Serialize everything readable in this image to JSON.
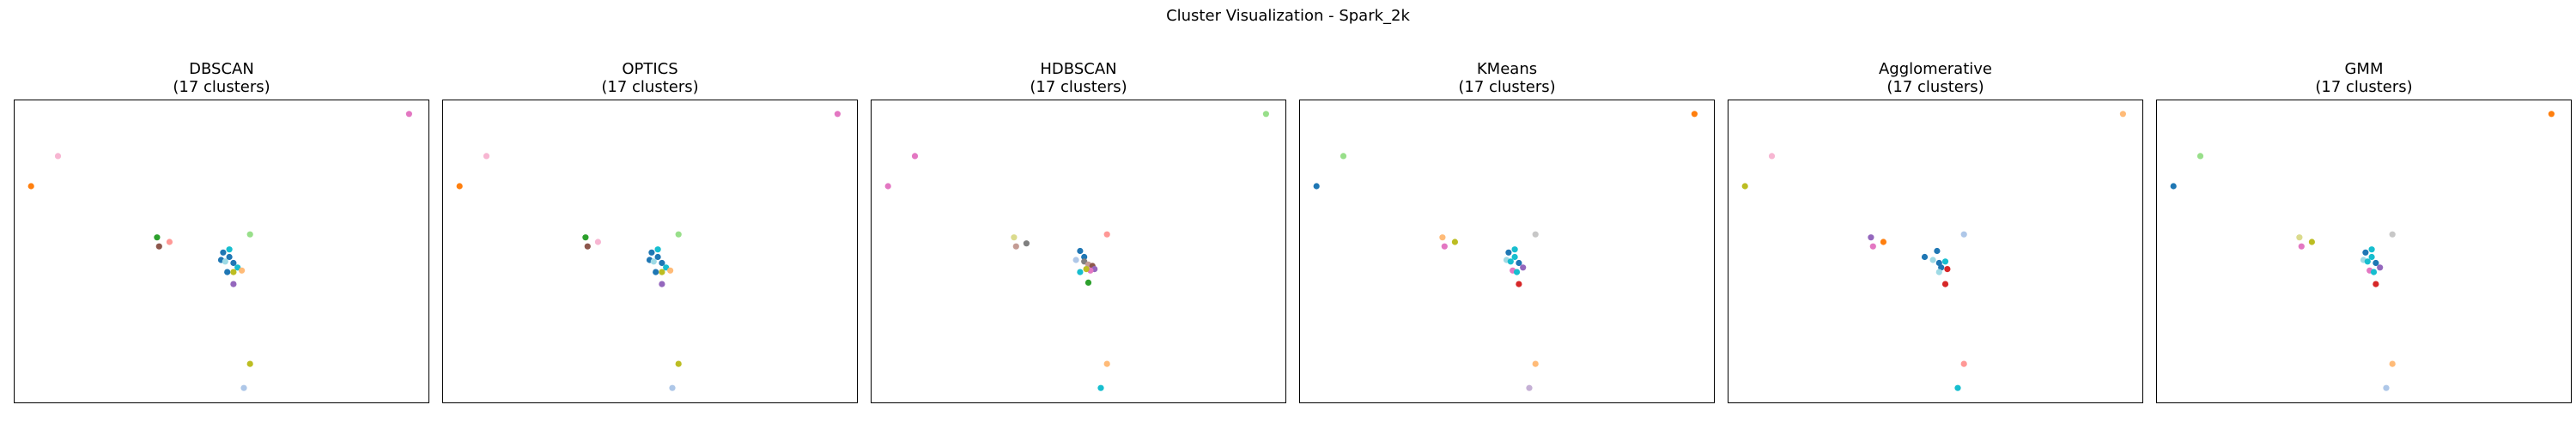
{
  "figure": {
    "suptitle": "Cluster Visualization - Spark_2k"
  },
  "chart_data": [
    {
      "type": "scatter",
      "title": "DBSCAN",
      "subtitle": "(17 clusters)",
      "xlim": [
        0,
        100
      ],
      "ylim": [
        0,
        100
      ],
      "grid": false,
      "axes_ticks": false,
      "points": [
        {
          "x": 95.5,
          "y": 95.5,
          "color": "#e377c2"
        },
        {
          "x": 10.5,
          "y": 81.5,
          "color": "#f7b6d2"
        },
        {
          "x": 4.0,
          "y": 71.5,
          "color": "#ff7f0e"
        },
        {
          "x": 34.5,
          "y": 54.5,
          "color": "#2ca02c"
        },
        {
          "x": 37.5,
          "y": 53.0,
          "color": "#ff9896"
        },
        {
          "x": 35.0,
          "y": 51.5,
          "color": "#8c564b"
        },
        {
          "x": 57.0,
          "y": 55.5,
          "color": "#98df8a"
        },
        {
          "x": 50.5,
          "y": 49.5,
          "color": "#1f77b4"
        },
        {
          "x": 52.0,
          "y": 50.5,
          "color": "#17becf"
        },
        {
          "x": 50.0,
          "y": 47.0,
          "color": "#1f77b4"
        },
        {
          "x": 52.0,
          "y": 48.0,
          "color": "#1f77b4"
        },
        {
          "x": 51.0,
          "y": 46.5,
          "color": "#9edae5"
        },
        {
          "x": 53.0,
          "y": 46.0,
          "color": "#1f77b4"
        },
        {
          "x": 54.0,
          "y": 44.5,
          "color": "#17becf"
        },
        {
          "x": 55.0,
          "y": 43.5,
          "color": "#ffbb78"
        },
        {
          "x": 51.5,
          "y": 43.0,
          "color": "#1f77b4"
        },
        {
          "x": 53.0,
          "y": 43.0,
          "color": "#bcbd22"
        },
        {
          "x": 53.0,
          "y": 39.0,
          "color": "#9467bd"
        },
        {
          "x": 57.0,
          "y": 12.5,
          "color": "#bcbd22"
        },
        {
          "x": 55.5,
          "y": 4.5,
          "color": "#aec7e8"
        }
      ]
    },
    {
      "type": "scatter",
      "title": "OPTICS",
      "subtitle": "(17 clusters)",
      "xlim": [
        0,
        100
      ],
      "ylim": [
        0,
        100
      ],
      "grid": false,
      "axes_ticks": false,
      "points": [
        {
          "x": 95.5,
          "y": 95.5,
          "color": "#e377c2"
        },
        {
          "x": 10.5,
          "y": 81.5,
          "color": "#f7b6d2"
        },
        {
          "x": 4.0,
          "y": 71.5,
          "color": "#ff7f0e"
        },
        {
          "x": 34.5,
          "y": 54.5,
          "color": "#2ca02c"
        },
        {
          "x": 37.5,
          "y": 53.0,
          "color": "#f7b6d2"
        },
        {
          "x": 35.0,
          "y": 51.5,
          "color": "#8c564b"
        },
        {
          "x": 57.0,
          "y": 55.5,
          "color": "#98df8a"
        },
        {
          "x": 50.5,
          "y": 49.5,
          "color": "#1f77b4"
        },
        {
          "x": 52.0,
          "y": 50.5,
          "color": "#17becf"
        },
        {
          "x": 50.0,
          "y": 47.0,
          "color": "#1f77b4"
        },
        {
          "x": 52.0,
          "y": 48.0,
          "color": "#1f77b4"
        },
        {
          "x": 51.0,
          "y": 46.5,
          "color": "#9edae5"
        },
        {
          "x": 53.0,
          "y": 46.0,
          "color": "#1f77b4"
        },
        {
          "x": 54.0,
          "y": 44.5,
          "color": "#17becf"
        },
        {
          "x": 55.0,
          "y": 43.5,
          "color": "#ffbb78"
        },
        {
          "x": 51.5,
          "y": 43.0,
          "color": "#1f77b4"
        },
        {
          "x": 53.0,
          "y": 43.0,
          "color": "#bcbd22"
        },
        {
          "x": 53.0,
          "y": 39.0,
          "color": "#9467bd"
        },
        {
          "x": 57.0,
          "y": 12.5,
          "color": "#bcbd22"
        },
        {
          "x": 55.5,
          "y": 4.5,
          "color": "#aec7e8"
        }
      ]
    },
    {
      "type": "scatter",
      "title": "HDBSCAN",
      "subtitle": "(17 clusters)",
      "xlim": [
        0,
        100
      ],
      "ylim": [
        0,
        100
      ],
      "grid": false,
      "axes_ticks": false,
      "points": [
        {
          "x": 95.5,
          "y": 95.5,
          "color": "#98df8a"
        },
        {
          "x": 10.5,
          "y": 81.5,
          "color": "#e377c2"
        },
        {
          "x": 4.0,
          "y": 71.5,
          "color": "#e377c2"
        },
        {
          "x": 34.5,
          "y": 54.5,
          "color": "#dbdb8d"
        },
        {
          "x": 37.5,
          "y": 52.5,
          "color": "#7f7f7f"
        },
        {
          "x": 35.0,
          "y": 51.5,
          "color": "#c49c94"
        },
        {
          "x": 57.0,
          "y": 55.5,
          "color": "#ff9896"
        },
        {
          "x": 50.5,
          "y": 50.0,
          "color": "#1f77b4"
        },
        {
          "x": 49.5,
          "y": 47.0,
          "color": "#aec7e8"
        },
        {
          "x": 51.5,
          "y": 48.0,
          "color": "#1f77b4"
        },
        {
          "x": 51.5,
          "y": 46.5,
          "color": "#7f7f7f"
        },
        {
          "x": 52.5,
          "y": 45.5,
          "color": "#c49c94"
        },
        {
          "x": 53.5,
          "y": 45.0,
          "color": "#8c564b"
        },
        {
          "x": 54.0,
          "y": 44.0,
          "color": "#9467bd"
        },
        {
          "x": 53.0,
          "y": 43.5,
          "color": "#e377c2"
        },
        {
          "x": 52.0,
          "y": 44.0,
          "color": "#bcbd22"
        },
        {
          "x": 50.5,
          "y": 43.0,
          "color": "#17becf"
        },
        {
          "x": 52.5,
          "y": 39.5,
          "color": "#2ca02c"
        },
        {
          "x": 57.0,
          "y": 12.5,
          "color": "#ffbb78"
        },
        {
          "x": 55.5,
          "y": 4.5,
          "color": "#17becf"
        }
      ]
    },
    {
      "type": "scatter",
      "title": "KMeans",
      "subtitle": "(17 clusters)",
      "xlim": [
        0,
        100
      ],
      "ylim": [
        0,
        100
      ],
      "grid": false,
      "axes_ticks": false,
      "points": [
        {
          "x": 95.5,
          "y": 95.5,
          "color": "#ff7f0e"
        },
        {
          "x": 10.5,
          "y": 81.5,
          "color": "#98df8a"
        },
        {
          "x": 4.0,
          "y": 71.5,
          "color": "#1f77b4"
        },
        {
          "x": 34.5,
          "y": 54.5,
          "color": "#ffbb78"
        },
        {
          "x": 37.5,
          "y": 53.0,
          "color": "#bcbd22"
        },
        {
          "x": 35.0,
          "y": 51.5,
          "color": "#e377c2"
        },
        {
          "x": 57.0,
          "y": 55.5,
          "color": "#c7c7c7"
        },
        {
          "x": 50.5,
          "y": 49.5,
          "color": "#1f77b4"
        },
        {
          "x": 52.0,
          "y": 50.5,
          "color": "#17becf"
        },
        {
          "x": 50.0,
          "y": 47.0,
          "color": "#9edae5"
        },
        {
          "x": 52.0,
          "y": 48.0,
          "color": "#17becf"
        },
        {
          "x": 51.0,
          "y": 46.5,
          "color": "#17becf"
        },
        {
          "x": 53.0,
          "y": 46.0,
          "color": "#1f77b4"
        },
        {
          "x": 54.0,
          "y": 44.5,
          "color": "#9467bd"
        },
        {
          "x": 51.5,
          "y": 43.5,
          "color": "#e377c2"
        },
        {
          "x": 52.5,
          "y": 43.0,
          "color": "#17becf"
        },
        {
          "x": 53.0,
          "y": 39.0,
          "color": "#d62728"
        },
        {
          "x": 57.0,
          "y": 12.5,
          "color": "#ffbb78"
        },
        {
          "x": 55.5,
          "y": 4.5,
          "color": "#c5b0d5"
        }
      ]
    },
    {
      "type": "scatter",
      "title": "Agglomerative",
      "subtitle": "(17 clusters)",
      "xlim": [
        0,
        100
      ],
      "ylim": [
        0,
        100
      ],
      "grid": false,
      "axes_ticks": false,
      "points": [
        {
          "x": 95.5,
          "y": 95.5,
          "color": "#ffbb78"
        },
        {
          "x": 10.5,
          "y": 81.5,
          "color": "#f7b6d2"
        },
        {
          "x": 4.0,
          "y": 71.5,
          "color": "#bcbd22"
        },
        {
          "x": 34.5,
          "y": 54.5,
          "color": "#9467bd"
        },
        {
          "x": 37.5,
          "y": 53.0,
          "color": "#ff7f0e"
        },
        {
          "x": 35.0,
          "y": 51.5,
          "color": "#e377c2"
        },
        {
          "x": 57.0,
          "y": 55.5,
          "color": "#aec7e8"
        },
        {
          "x": 50.5,
          "y": 50.0,
          "color": "#1f77b4"
        },
        {
          "x": 47.5,
          "y": 48.0,
          "color": "#1f77b4"
        },
        {
          "x": 49.5,
          "y": 47.0,
          "color": "#9edae5"
        },
        {
          "x": 51.0,
          "y": 46.0,
          "color": "#1f77b4"
        },
        {
          "x": 52.5,
          "y": 46.5,
          "color": "#17becf"
        },
        {
          "x": 51.5,
          "y": 44.5,
          "color": "#1f77b4"
        },
        {
          "x": 53.0,
          "y": 44.0,
          "color": "#d62728"
        },
        {
          "x": 51.0,
          "y": 43.0,
          "color": "#9edae5"
        },
        {
          "x": 52.5,
          "y": 39.0,
          "color": "#d62728"
        },
        {
          "x": 57.0,
          "y": 12.5,
          "color": "#ff9896"
        },
        {
          "x": 55.5,
          "y": 4.5,
          "color": "#17becf"
        }
      ]
    },
    {
      "type": "scatter",
      "title": "GMM",
      "subtitle": "(17 clusters)",
      "xlim": [
        0,
        100
      ],
      "ylim": [
        0,
        100
      ],
      "grid": false,
      "axes_ticks": false,
      "points": [
        {
          "x": 95.5,
          "y": 95.5,
          "color": "#ff7f0e"
        },
        {
          "x": 10.5,
          "y": 81.5,
          "color": "#98df8a"
        },
        {
          "x": 4.0,
          "y": 71.5,
          "color": "#1f77b4"
        },
        {
          "x": 34.5,
          "y": 54.5,
          "color": "#dbdb8d"
        },
        {
          "x": 37.5,
          "y": 53.0,
          "color": "#bcbd22"
        },
        {
          "x": 35.0,
          "y": 51.5,
          "color": "#e377c2"
        },
        {
          "x": 57.0,
          "y": 55.5,
          "color": "#c7c7c7"
        },
        {
          "x": 50.5,
          "y": 49.5,
          "color": "#1f77b4"
        },
        {
          "x": 52.0,
          "y": 50.5,
          "color": "#17becf"
        },
        {
          "x": 50.0,
          "y": 47.0,
          "color": "#9edae5"
        },
        {
          "x": 52.0,
          "y": 48.0,
          "color": "#17becf"
        },
        {
          "x": 51.0,
          "y": 46.5,
          "color": "#17becf"
        },
        {
          "x": 53.0,
          "y": 46.0,
          "color": "#1f77b4"
        },
        {
          "x": 54.0,
          "y": 44.5,
          "color": "#9467bd"
        },
        {
          "x": 51.5,
          "y": 43.5,
          "color": "#e377c2"
        },
        {
          "x": 52.5,
          "y": 43.0,
          "color": "#17becf"
        },
        {
          "x": 53.0,
          "y": 39.0,
          "color": "#d62728"
        },
        {
          "x": 57.0,
          "y": 12.5,
          "color": "#ffbb78"
        },
        {
          "x": 55.5,
          "y": 4.5,
          "color": "#aec7e8"
        }
      ]
    }
  ]
}
